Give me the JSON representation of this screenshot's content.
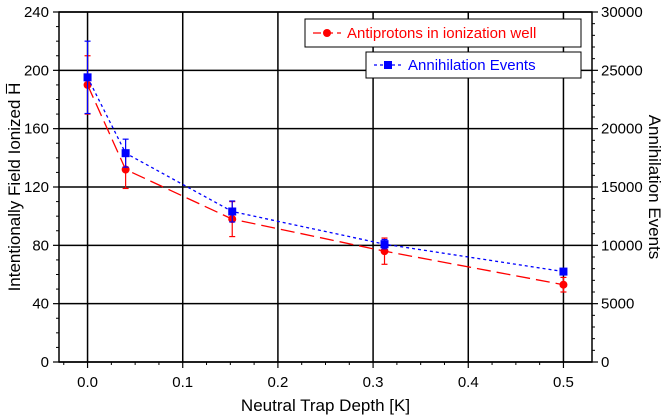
{
  "chart_data": {
    "type": "line",
    "xlabel": "Neutral Trap Depth [K]",
    "ylabel": "Intentionally Field Ionized H̅",
    "y2label": "Annihilation Events",
    "xlim": [
      -0.03,
      0.53
    ],
    "ylim": [
      0,
      240
    ],
    "y2lim": [
      0,
      30000
    ],
    "grid": true,
    "x_ticks": [
      0.0,
      0.1,
      0.2,
      0.3,
      0.4,
      0.5
    ],
    "x_tick_labels": [
      "0.0",
      "0.1",
      "0.2",
      "0.3",
      "0.4",
      "0.5"
    ],
    "y_ticks": [
      0,
      40,
      80,
      120,
      160,
      200,
      240
    ],
    "y_tick_labels": [
      "0",
      "40",
      "80",
      "120",
      "160",
      "200",
      "240"
    ],
    "y2_ticks": [
      0,
      5000,
      10000,
      15000,
      20000,
      25000,
      30000
    ],
    "y2_tick_labels": [
      "0",
      "5000",
      "10000",
      "15000",
      "20000",
      "25000",
      "30000"
    ],
    "legend_placement": "top-right",
    "series": [
      {
        "name": "Antiprotons in ionization well",
        "axis": "left",
        "color": "#ff0000",
        "marker": "circle",
        "line": "long-dash",
        "x": [
          0.0,
          0.04,
          0.152,
          0.312,
          0.5
        ],
        "y": [
          190,
          132,
          98,
          76,
          53
        ],
        "err": [
          20,
          13,
          12,
          9,
          5
        ]
      },
      {
        "name": "Annihilation Events",
        "axis": "right",
        "color": "#0000ff",
        "marker": "square",
        "line": "dotted",
        "x": [
          0.0,
          0.04,
          0.152,
          0.312,
          0.5
        ],
        "y": [
          24400,
          17900,
          12900,
          10100,
          7750
        ],
        "err": [
          3100,
          1200,
          900,
          400,
          250
        ]
      }
    ]
  }
}
